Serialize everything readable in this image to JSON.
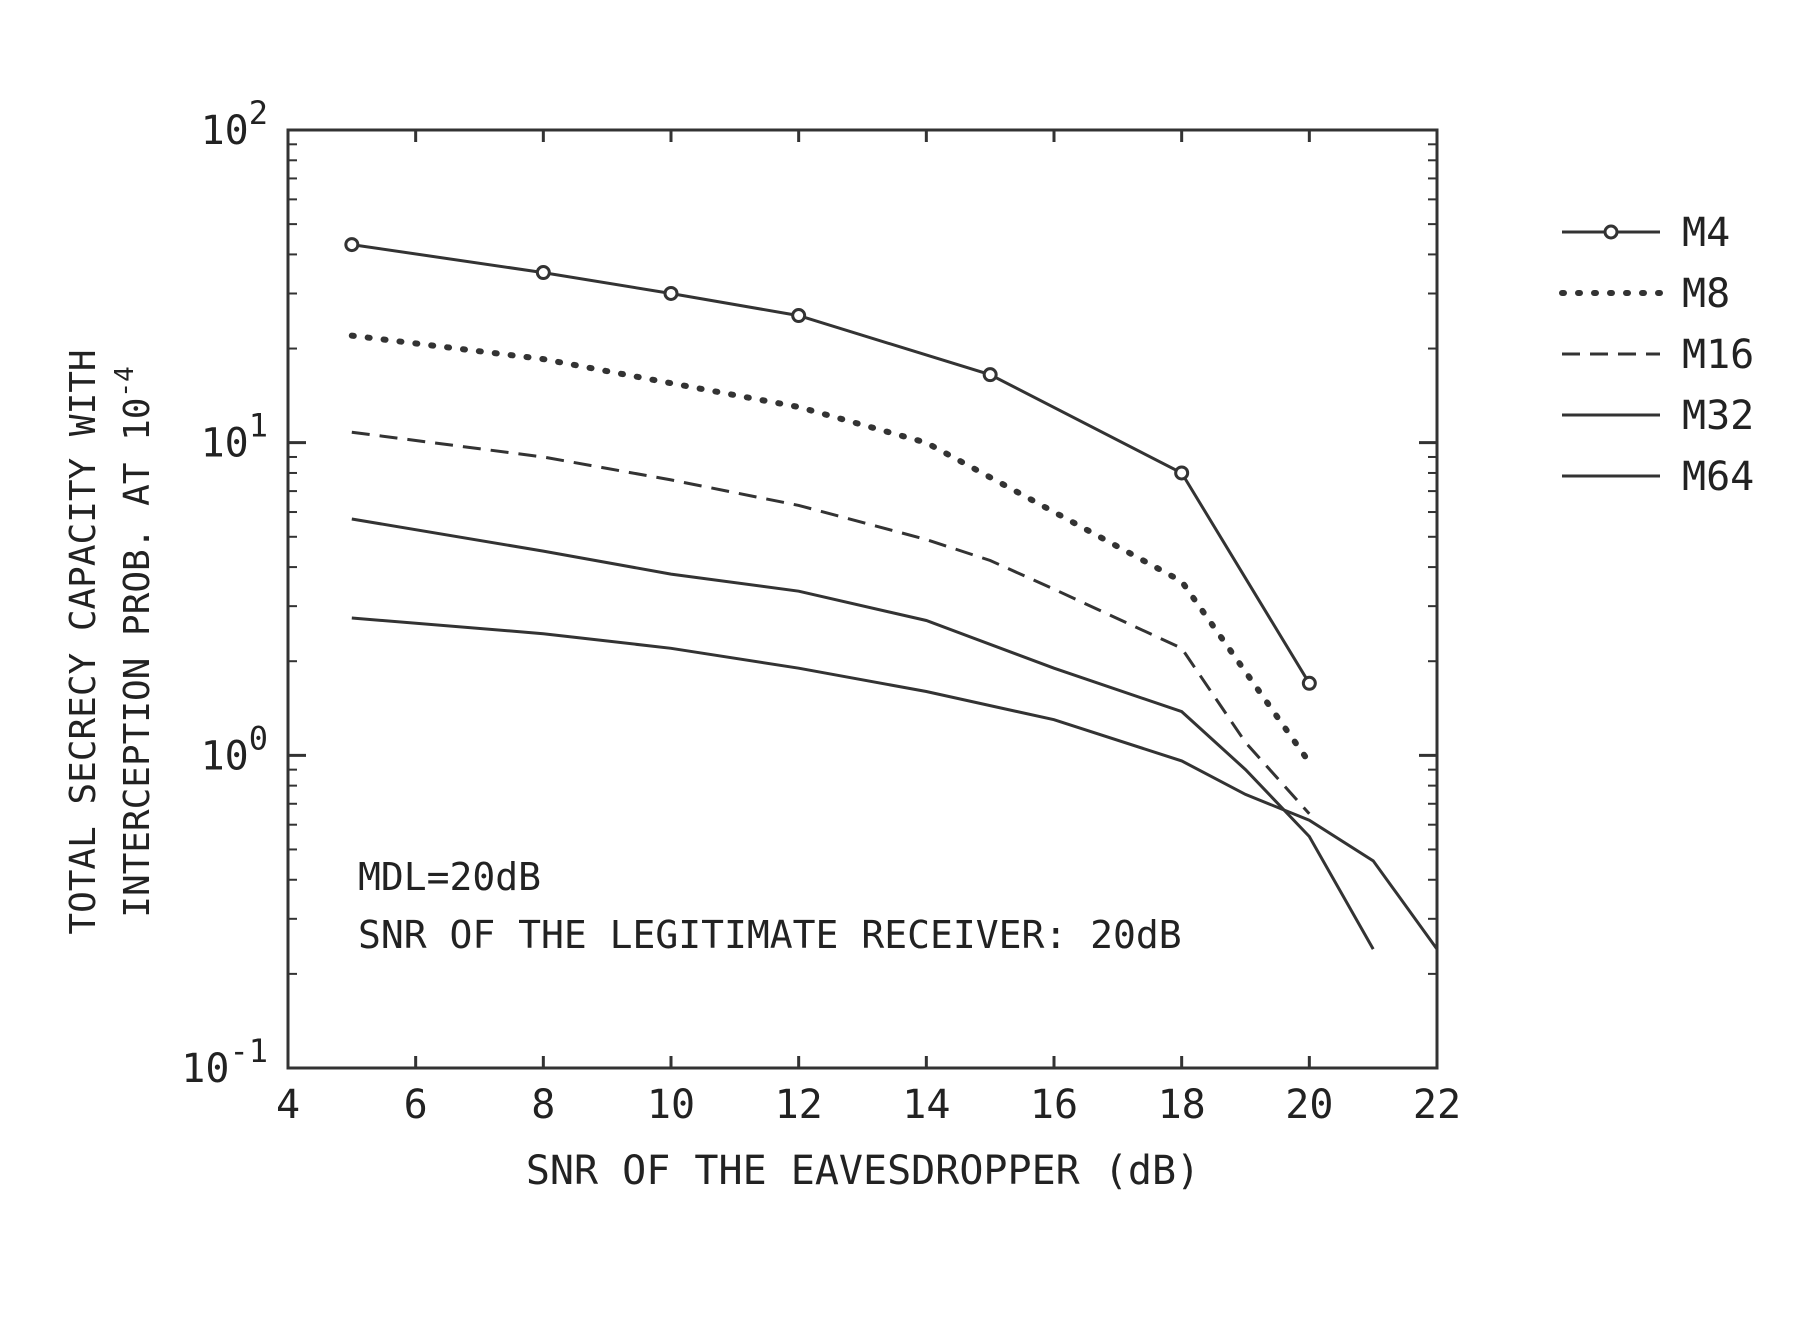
{
  "chart_data": {
    "type": "line",
    "title": "",
    "xlabel": "SNR OF THE EAVESDROPPER (dB)",
    "ylabel_line1": "TOTAL SECRECY CAPACITY WITH",
    "ylabel_line2_prefix": "INTERCEPTION PROB. AT 10",
    "ylabel_line2_exp": "-4",
    "x_scale": "linear",
    "y_scale": "log",
    "xlim": [
      4,
      22
    ],
    "ylim": [
      0.1,
      100
    ],
    "x_ticks": [
      4,
      6,
      8,
      10,
      12,
      14,
      16,
      18,
      20,
      22
    ],
    "y_ticks": [
      {
        "value": 0.1,
        "base": "10",
        "exp": "-1"
      },
      {
        "value": 1,
        "base": "10",
        "exp": "0"
      },
      {
        "value": 10,
        "base": "10",
        "exp": "1"
      },
      {
        "value": 100,
        "base": "10",
        "exp": "2"
      }
    ],
    "grid": false,
    "legend_position": "outside-right",
    "annotations": [
      "MDL=20dB",
      "SNR OF THE LEGITIMATE RECEIVER: 20dB"
    ],
    "series": [
      {
        "name": "M4",
        "style": "solid-circle-markers",
        "x": [
          5,
          8,
          10,
          12,
          15,
          18,
          20
        ],
        "y": [
          43,
          35,
          30,
          25.5,
          16.5,
          8,
          1.7
        ]
      },
      {
        "name": "M8",
        "style": "dotted",
        "x": [
          5,
          8,
          10,
          12,
          14,
          16,
          18,
          20
        ],
        "y": [
          22,
          18.5,
          15.5,
          13,
          10,
          6,
          3.6,
          0.95
        ]
      },
      {
        "name": "M16",
        "style": "dashed",
        "x": [
          5,
          8,
          10,
          12,
          14,
          15,
          16,
          18,
          19,
          20
        ],
        "y": [
          10.8,
          9,
          7.6,
          6.3,
          4.9,
          4.2,
          3.4,
          2.2,
          1.1,
          0.65
        ]
      },
      {
        "name": "M32",
        "style": "solid",
        "x": [
          5,
          8,
          10,
          12,
          14,
          16,
          18,
          19,
          20,
          21
        ],
        "y": [
          5.7,
          4.5,
          3.8,
          3.35,
          2.7,
          1.9,
          1.38,
          0.9,
          0.55,
          0.24
        ]
      },
      {
        "name": "M64",
        "style": "solid",
        "x": [
          5,
          8,
          10,
          12,
          14,
          16,
          18,
          19,
          20,
          21,
          22
        ],
        "y": [
          2.75,
          2.45,
          2.2,
          1.9,
          1.6,
          1.3,
          0.96,
          0.75,
          0.62,
          0.46,
          0.24
        ]
      }
    ]
  }
}
